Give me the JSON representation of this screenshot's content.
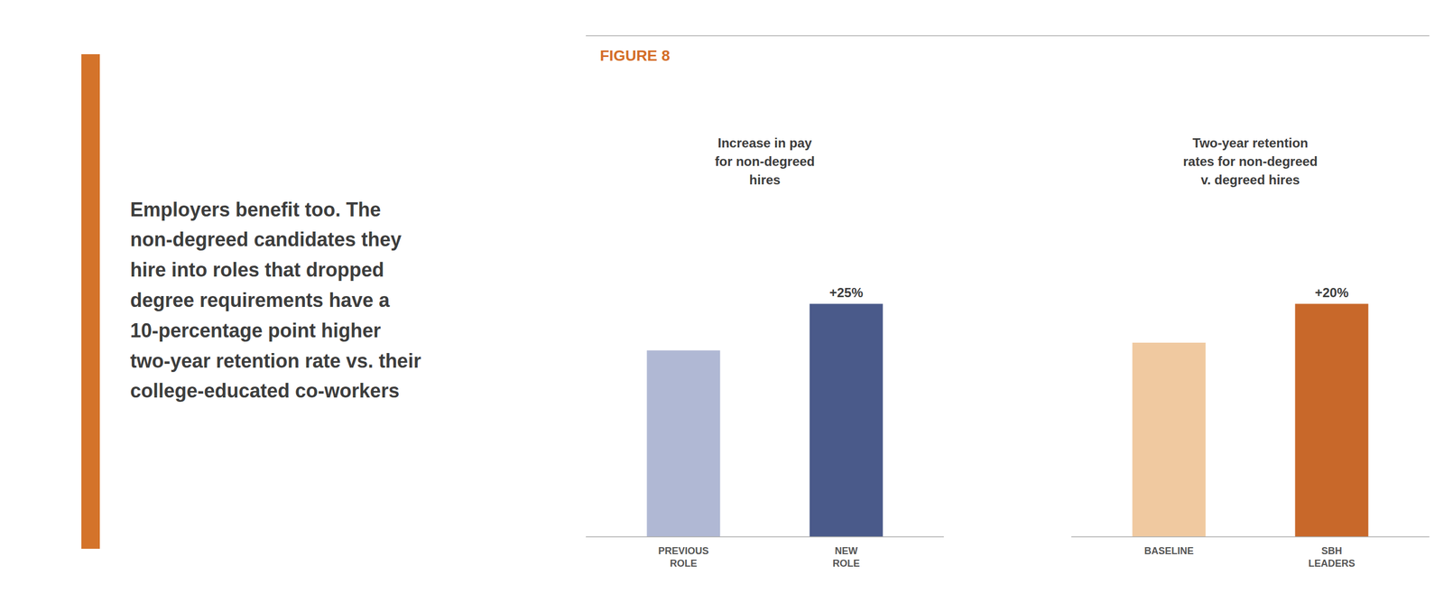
{
  "title": "FIGURE 8",
  "annotations": [
    "Employers benefit too. The",
    "non-degreed candidates they",
    "hire into roles that dropped",
    "degree requirements have a",
    "10-percentage point higher",
    "two-year retention rate vs. their",
    "college-educated co-workers"
  ],
  "chart_data": [
    {
      "type": "bar",
      "title": "Increase in pay\nfor non-degreed\nhires",
      "categories": [
        "PREVIOUS\nROLE",
        "NEW\nROLE"
      ],
      "values": [
        100,
        125
      ],
      "colors": [
        "#b0b8d4",
        "#4a5a8a"
      ],
      "annotations": [
        "+25%"
      ],
      "ylim": [
        0,
        160
      ],
      "tick_labels": "x",
      "grid": false
    },
    {
      "type": "bar",
      "title": "Two-year retention\nrates for non-degreed\nv. degreed hires",
      "categories": [
        "BASELINE",
        "SBH\nLEADERS"
      ],
      "values": [
        100,
        120
      ],
      "colors": [
        "#f0c9a0",
        "#c8682a"
      ],
      "annotations": [
        "+20%"
      ],
      "ylim": [
        0,
        153.6
      ],
      "tick_labels": "x",
      "grid": false
    }
  ]
}
